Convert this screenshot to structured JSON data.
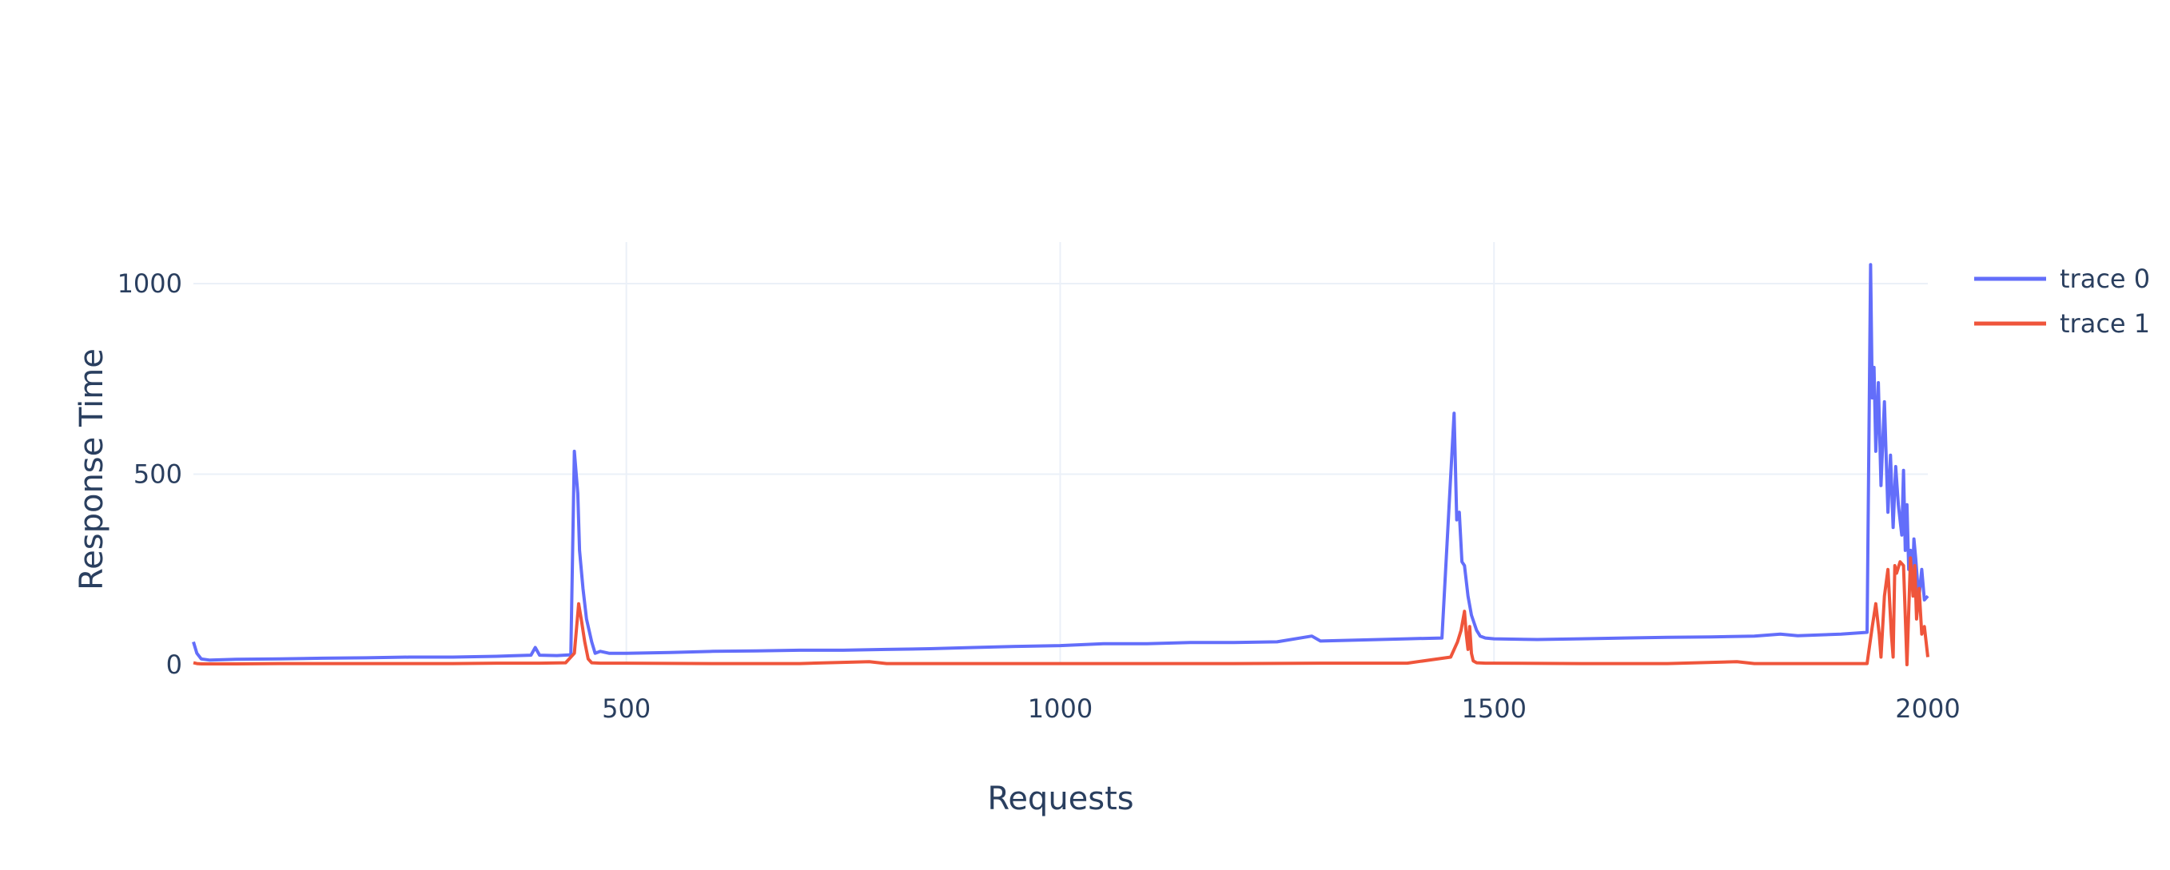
{
  "chart_data": {
    "type": "line",
    "title": "",
    "xlabel": "Requests",
    "ylabel": "Response Time",
    "xlim": [
      1,
      2000
    ],
    "ylim": [
      0,
      1100
    ],
    "xticks": [
      500,
      1000,
      1500,
      2000
    ],
    "xtick_labels": [
      "500",
      "1000",
      "1500",
      "2000"
    ],
    "yticks": [
      0,
      500,
      1000
    ],
    "ytick_labels": [
      "0",
      "500",
      "1000"
    ],
    "grid": true,
    "legend_position": "top-right",
    "series": [
      {
        "name": "trace 0",
        "color": "#636efa",
        "x": [
          1,
          5,
          10,
          20,
          50,
          100,
          150,
          200,
          250,
          300,
          350,
          390,
          395,
          400,
          420,
          436,
          440,
          444,
          446,
          450,
          454,
          460,
          464,
          470,
          480,
          500,
          550,
          600,
          650,
          700,
          750,
          800,
          850,
          900,
          950,
          1000,
          1050,
          1100,
          1150,
          1200,
          1250,
          1290,
          1300,
          1350,
          1400,
          1440,
          1454,
          1457,
          1460,
          1463,
          1466,
          1470,
          1474,
          1480,
          1484,
          1490,
          1500,
          1550,
          1600,
          1650,
          1700,
          1750,
          1800,
          1830,
          1850,
          1900,
          1930,
          1934,
          1936,
          1938,
          1940,
          1943,
          1946,
          1950,
          1954,
          1957,
          1960,
          1963,
          1966,
          1970,
          1972,
          1974,
          1976,
          1978,
          1980,
          1982,
          1984,
          1986,
          1988,
          1990,
          1993,
          1996,
          2000
        ],
        "y": [
          60,
          30,
          15,
          12,
          14,
          15,
          17,
          18,
          20,
          20,
          22,
          25,
          45,
          25,
          24,
          26,
          560,
          450,
          300,
          200,
          120,
          60,
          30,
          35,
          30,
          30,
          32,
          35,
          36,
          38,
          38,
          40,
          42,
          45,
          48,
          50,
          55,
          55,
          58,
          58,
          60,
          75,
          62,
          65,
          68,
          70,
          660,
          380,
          400,
          270,
          260,
          180,
          130,
          90,
          75,
          70,
          68,
          66,
          68,
          70,
          72,
          73,
          75,
          80,
          76,
          80,
          85,
          1050,
          700,
          780,
          560,
          740,
          470,
          690,
          400,
          550,
          360,
          520,
          420,
          340,
          510,
          300,
          420,
          250,
          300,
          200,
          330,
          280,
          220,
          180,
          250,
          170,
          180
        ]
      },
      {
        "name": "trace 1",
        "color": "#ef553b",
        "x": [
          1,
          5,
          10,
          50,
          100,
          150,
          200,
          250,
          300,
          350,
          400,
          430,
          440,
          445,
          448,
          452,
          456,
          460,
          470,
          500,
          600,
          700,
          780,
          800,
          900,
          1000,
          1100,
          1200,
          1300,
          1400,
          1450,
          1458,
          1462,
          1466,
          1468,
          1470,
          1472,
          1474,
          1476,
          1480,
          1490,
          1500,
          1600,
          1700,
          1780,
          1800,
          1900,
          1930,
          1936,
          1940,
          1944,
          1946,
          1950,
          1954,
          1958,
          1960,
          1962,
          1964,
          1968,
          1972,
          1976,
          1980,
          1983,
          1985,
          1987,
          1990,
          1993,
          1996,
          2000
        ],
        "y": [
          5,
          3,
          2,
          2,
          3,
          3,
          3,
          3,
          3,
          4,
          4,
          5,
          30,
          160,
          120,
          60,
          15,
          5,
          4,
          4,
          3,
          3,
          8,
          3,
          3,
          3,
          3,
          3,
          4,
          4,
          20,
          60,
          90,
          140,
          80,
          40,
          100,
          30,
          10,
          5,
          4,
          4,
          3,
          3,
          8,
          3,
          3,
          3,
          100,
          160,
          80,
          20,
          180,
          250,
          80,
          20,
          260,
          240,
          270,
          260,
          0,
          280,
          180,
          260,
          120,
          200,
          80,
          100,
          20
        ]
      }
    ]
  }
}
